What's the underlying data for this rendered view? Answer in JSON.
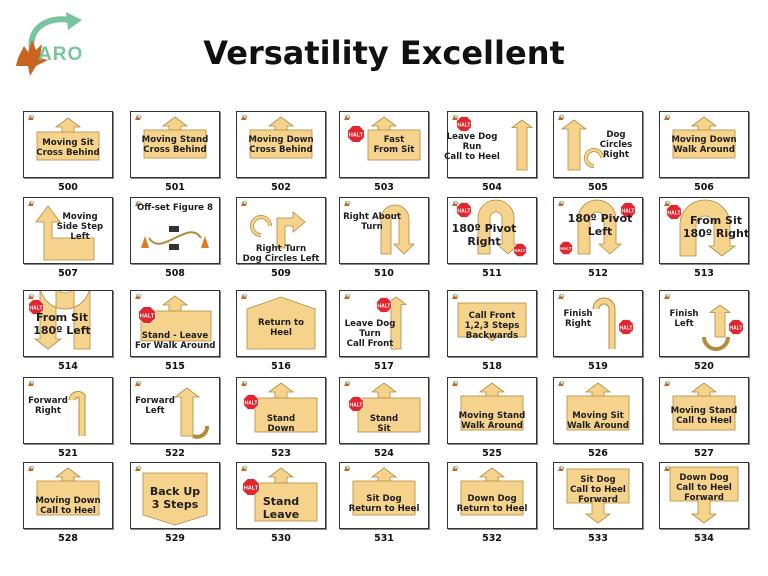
{
  "title": "Versatility Excellent",
  "logo": {
    "text": "ARO"
  },
  "halt_text": "HALT",
  "colors": {
    "arrow": "#f5d38d",
    "arrow_stroke": "#b58b3a",
    "halt": "#e1262f",
    "logo_green": "#79c4a0",
    "logo_leaf": "#c8651e"
  },
  "signs": [
    {
      "number": "500",
      "lines": [
        "Moving Sit",
        "Cross Behind"
      ]
    },
    {
      "number": "501",
      "lines": [
        "Moving Stand",
        "Cross Behind"
      ]
    },
    {
      "number": "502",
      "lines": [
        "Moving Down",
        "Cross Behind"
      ]
    },
    {
      "number": "503",
      "lines": [
        "Fast",
        "From Sit"
      ]
    },
    {
      "number": "504",
      "lines": [
        "Leave Dog",
        "Run",
        "Call to Heel"
      ]
    },
    {
      "number": "505",
      "lines": [
        "Dog",
        "Circles",
        "Right"
      ]
    },
    {
      "number": "506",
      "lines": [
        "Moving Down",
        "Walk Around"
      ]
    },
    {
      "number": "507",
      "lines": [
        "Moving",
        "Side Step",
        "Left"
      ]
    },
    {
      "number": "508",
      "lines": [
        "Off-set Figure 8"
      ]
    },
    {
      "number": "509",
      "lines": [
        "Right Turn",
        "Dog Circles Left"
      ]
    },
    {
      "number": "510",
      "lines": [
        "Right About",
        "Turn"
      ]
    },
    {
      "number": "511",
      "lines": [
        "180º Pivot",
        "Right"
      ]
    },
    {
      "number": "512",
      "lines": [
        "180º Pivot",
        "Left"
      ]
    },
    {
      "number": "513",
      "lines": [
        "From Sit",
        "180º Right"
      ]
    },
    {
      "number": "514",
      "lines": [
        "From Sit",
        "180º Left"
      ]
    },
    {
      "number": "515",
      "lines": [
        "Stand - Leave",
        "For Walk Around"
      ]
    },
    {
      "number": "516",
      "lines": [
        "Return to",
        "Heel"
      ]
    },
    {
      "number": "517",
      "lines": [
        "Leave Dog",
        "Turn",
        "Call Front"
      ]
    },
    {
      "number": "518",
      "lines": [
        "Call Front",
        "1,2,3 Steps",
        "Backwards"
      ]
    },
    {
      "number": "519",
      "lines": [
        "Finish",
        "Right"
      ]
    },
    {
      "number": "520",
      "lines": [
        "Finish",
        "Left"
      ]
    },
    {
      "number": "521",
      "lines": [
        "Forward",
        "Right"
      ]
    },
    {
      "number": "522",
      "lines": [
        "Forward",
        "Left"
      ]
    },
    {
      "number": "523",
      "lines": [
        "Stand",
        "Down"
      ]
    },
    {
      "number": "524",
      "lines": [
        "Stand",
        "Sit"
      ]
    },
    {
      "number": "525",
      "lines": [
        "Moving Stand",
        "Walk Around"
      ]
    },
    {
      "number": "526",
      "lines": [
        "Moving Sit",
        "Walk Around"
      ]
    },
    {
      "number": "527",
      "lines": [
        "Moving Stand",
        "Call to Heel"
      ]
    },
    {
      "number": "528",
      "lines": [
        "Moving Down",
        "Call to Heel"
      ]
    },
    {
      "number": "529",
      "lines": [
        "Back Up",
        "3 Steps"
      ]
    },
    {
      "number": "530",
      "lines": [
        "Stand",
        "Leave"
      ]
    },
    {
      "number": "531",
      "lines": [
        "Sit Dog",
        "Return to Heel"
      ]
    },
    {
      "number": "532",
      "lines": [
        "Down Dog",
        "Return to Heel"
      ]
    },
    {
      "number": "533",
      "lines": [
        "Sit Dog",
        "Call to Heel",
        "Forward"
      ]
    },
    {
      "number": "534",
      "lines": [
        "Down Dog",
        "Call to Heel",
        "Forward"
      ]
    }
  ]
}
